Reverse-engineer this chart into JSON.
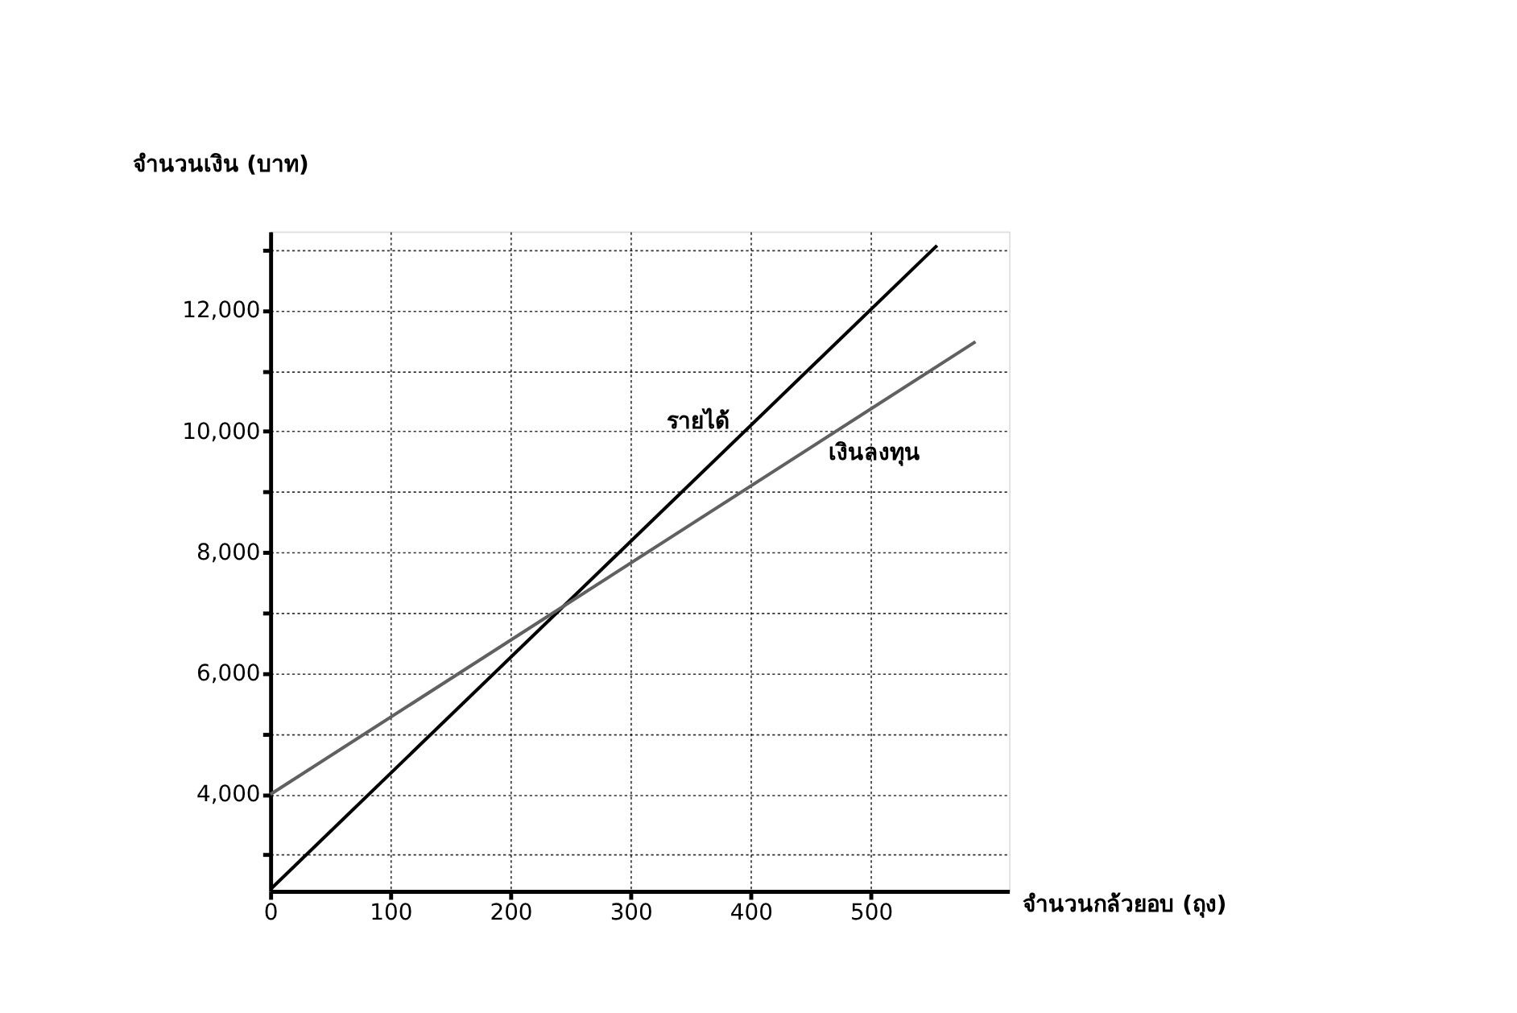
{
  "chart_data": {
    "type": "line",
    "xlabel": "จำนวนกล้วยอบ (ถุง)",
    "ylabel": "จำนวนเงิน (บาท)",
    "series": [
      {
        "name": "รายได้",
        "color": "#000000",
        "x": [
          0,
          555
        ],
        "values": [
          2430,
          13070
        ]
      },
      {
        "name": "เงินลงทุน",
        "color": "#606060",
        "x": [
          0,
          587
        ],
        "values": [
          4000,
          11480
        ]
      }
    ],
    "xlim": [
      0,
      615
    ],
    "xticks": [
      0,
      100,
      200,
      300,
      400,
      500
    ],
    "ylim": [
      2400,
      13300
    ],
    "yticks": [
      {
        "value": 3000,
        "label": null
      },
      {
        "value": 4000,
        "label": "4,000"
      },
      {
        "value": 5000,
        "label": null
      },
      {
        "value": 6000,
        "label": "6,000"
      },
      {
        "value": 7000,
        "label": null
      },
      {
        "value": 8000,
        "label": "8,000"
      },
      {
        "value": 9000,
        "label": null
      },
      {
        "value": 10000,
        "label": "10,000"
      },
      {
        "value": 11000,
        "label": null
      },
      {
        "value": 12000,
        "label": "12,000"
      },
      {
        "value": 13000,
        "label": null
      }
    ],
    "grid": true,
    "legend": false,
    "marker": "none",
    "line_style": "solid"
  }
}
